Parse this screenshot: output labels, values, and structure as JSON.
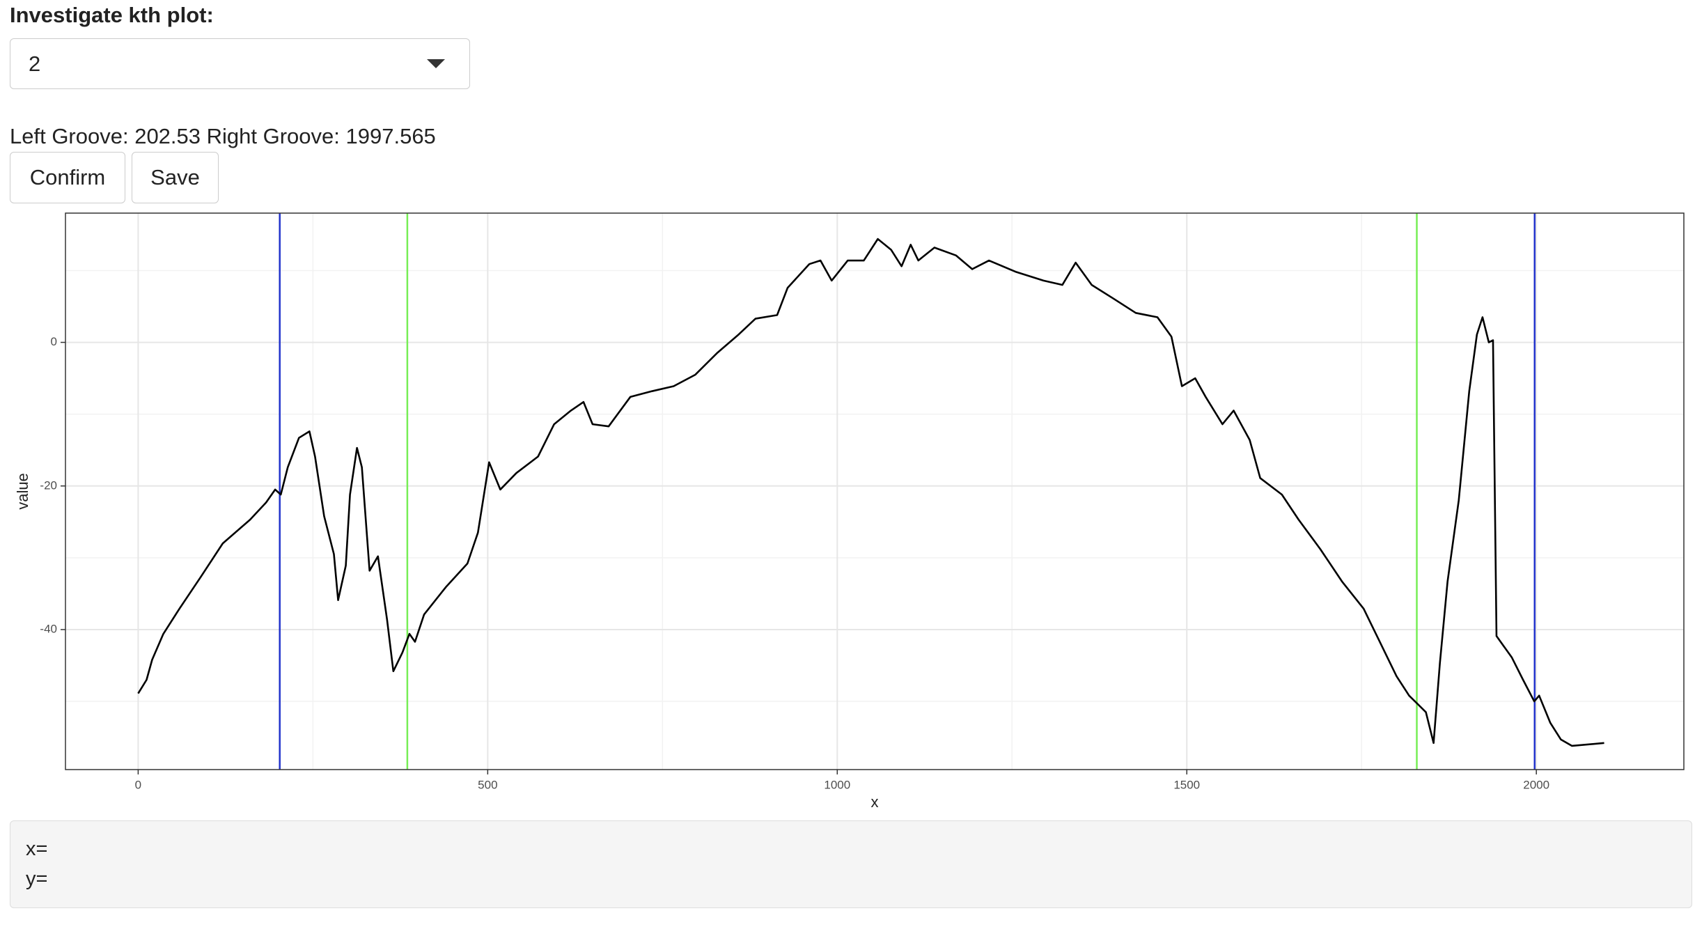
{
  "ui": {
    "select_label": "Investigate kth plot:",
    "select_value": "2",
    "groove_text": "Left Groove: 202.53 Right Groove: 1997.565",
    "buttons": [
      "Confirm",
      "Save"
    ],
    "info": [
      "x=",
      "y="
    ]
  },
  "chart_data": {
    "type": "line",
    "xlabel": "x",
    "ylabel": "value",
    "x": [
      0,
      12,
      20,
      36,
      59,
      90,
      121,
      160,
      183,
      196,
      204,
      214,
      230,
      245,
      253,
      266,
      280,
      286,
      297,
      303,
      313,
      320,
      331,
      343,
      356,
      365,
      378,
      388,
      396,
      409,
      440,
      471,
      486,
      502,
      518,
      541,
      572,
      595,
      619,
      637,
      650,
      673,
      704,
      735,
      766,
      797,
      828,
      859,
      883,
      914,
      929,
      960,
      976,
      992,
      1015,
      1038,
      1058,
      1077,
      1092,
      1105,
      1116,
      1139,
      1170,
      1193,
      1217,
      1256,
      1295,
      1322,
      1341,
      1364,
      1395,
      1427,
      1458,
      1478,
      1493,
      1512,
      1527,
      1551,
      1567,
      1590,
      1605,
      1636,
      1660,
      1691,
      1722,
      1753,
      1776,
      1800,
      1818,
      1842,
      1853,
      1862,
      1873,
      1889,
      1904,
      1915,
      1923,
      1932,
      1938,
      1943,
      1965,
      1981,
      1997,
      2004,
      2020,
      2035,
      2051,
      2097
    ],
    "series": [
      {
        "color": "#000000",
        "values": [
          -48.9,
          -47,
          -44.2,
          -40.6,
          -37.1,
          -32.6,
          -28,
          -24.7,
          -22.3,
          -20.5,
          -21.2,
          -17.4,
          -13.3,
          -12.4,
          -15.9,
          -24.2,
          -29.5,
          -35.9,
          -31.1,
          -21.2,
          -14.7,
          -17.4,
          -31.8,
          -29.8,
          -38.6,
          -45.8,
          -43.2,
          -40.6,
          -41.7,
          -37.9,
          -34.1,
          -30.8,
          -26.5,
          -16.7,
          -20.5,
          -18.2,
          -15.9,
          -11.4,
          -9.5,
          -8.3,
          -11.4,
          -11.7,
          -7.6,
          -6.8,
          -6.1,
          -4.5,
          -1.5,
          1.1,
          3.3,
          3.8,
          7.6,
          10.9,
          11.4,
          8.6,
          11.4,
          11.4,
          14.4,
          12.9,
          10.6,
          13.6,
          11.4,
          13.2,
          12.1,
          10.2,
          11.4,
          9.8,
          8.6,
          8.0,
          11.1,
          8.0,
          6.1,
          4.1,
          3.5,
          0.8,
          -6.1,
          -5.0,
          -7.6,
          -11.4,
          -9.5,
          -13.6,
          -18.9,
          -21.2,
          -24.7,
          -28.8,
          -33.3,
          -37.1,
          -41.7,
          -46.5,
          -49.2,
          -51.5,
          -55.8,
          -44.7,
          -33.3,
          -22.0,
          -6.8,
          1.1,
          3.5,
          0,
          0.3,
          -40.9,
          -43.9,
          -47.0,
          -50,
          -49.2,
          -53.0,
          -55.3,
          -56.2,
          -55.8
        ]
      }
    ],
    "vlines": [
      {
        "x": 202.53,
        "color": "#2233cc"
      },
      {
        "x": 385,
        "color": "#77ee55"
      },
      {
        "x": 1829,
        "color": "#77ee55"
      },
      {
        "x": 1997.565,
        "color": "#2233cc"
      }
    ],
    "xlim": [
      -104,
      2211
    ],
    "ylim": [
      -59.5,
      18
    ],
    "xticks": [
      0,
      500,
      1000,
      1500,
      2000
    ],
    "yticks": [
      -40,
      -20,
      0
    ],
    "grid": true
  }
}
